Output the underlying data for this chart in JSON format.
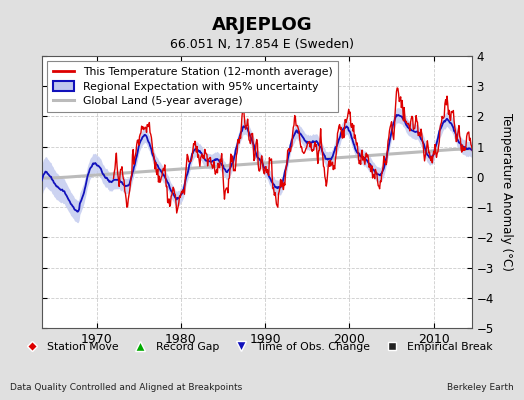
{
  "title": "ARJEPLOG",
  "subtitle": "66.051 N, 17.854 E (Sweden)",
  "ylabel": "Temperature Anomaly (°C)",
  "xlabel_left": "Data Quality Controlled and Aligned at Breakpoints",
  "xlabel_right": "Berkeley Earth",
  "ylim": [
    -5,
    4
  ],
  "xlim": [
    1963.5,
    2014.5
  ],
  "xticks": [
    1970,
    1980,
    1990,
    2000,
    2010
  ],
  "yticks": [
    -5,
    -4,
    -3,
    -2,
    -1,
    0,
    1,
    2,
    3,
    4
  ],
  "bg_color": "#e0e0e0",
  "plot_bg_color": "#ffffff",
  "red_color": "#dd0000",
  "blue_color": "#1111bb",
  "blue_fill_color": "#c0c8ee",
  "gray_color": "#bbbbbb",
  "legend_labels": [
    "This Temperature Station (12-month average)",
    "Regional Expectation with 95% uncertainty",
    "Global Land (5-year average)"
  ],
  "legend_marker_labels": [
    "Station Move",
    "Record Gap",
    "Time of Obs. Change",
    "Empirical Break"
  ]
}
